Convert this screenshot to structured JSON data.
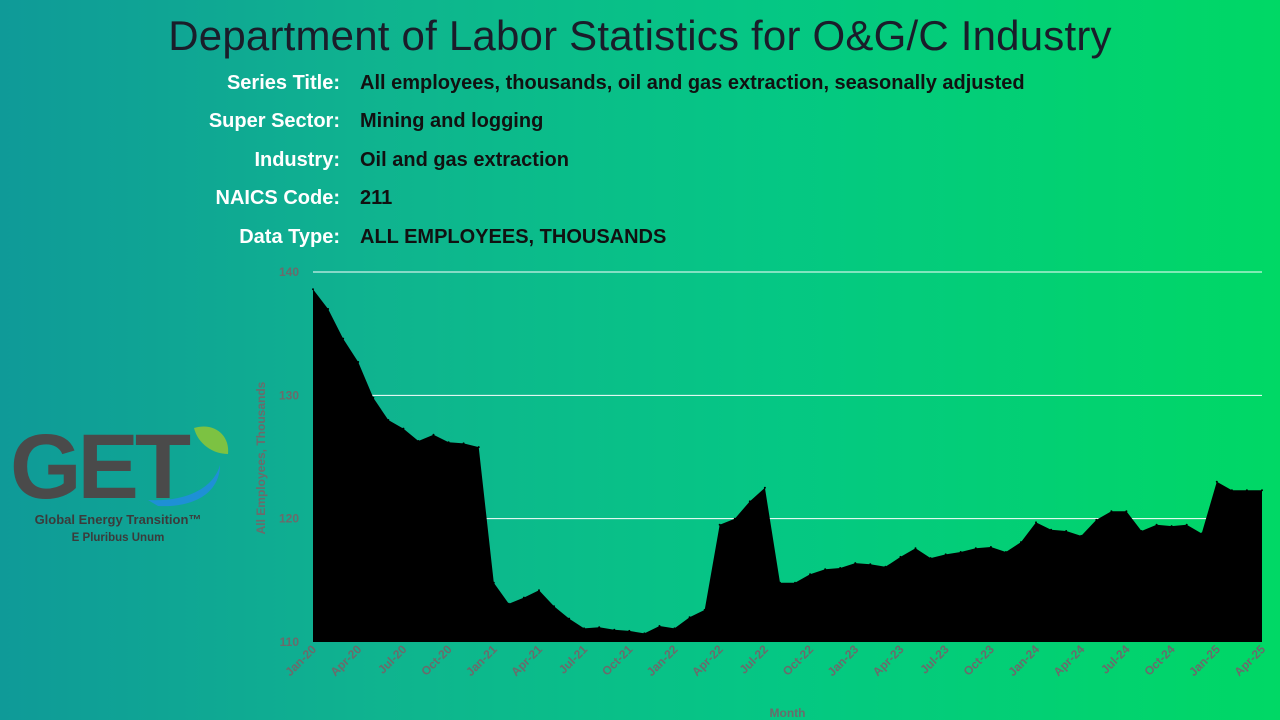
{
  "header": {
    "title": "Department of Labor Statistics for O&G/C Industry"
  },
  "meta": [
    {
      "label": "Series Title:",
      "value": "All employees, thousands, oil and gas extraction, seasonally adjusted"
    },
    {
      "label": "Super Sector:",
      "value": "Mining and logging"
    },
    {
      "label": "Industry:",
      "value": "Oil and gas extraction"
    },
    {
      "label": "NAICS Code:",
      "value": "211"
    },
    {
      "label": "Data Type:",
      "value": "ALL EMPLOYEES, THOUSANDS"
    }
  ],
  "logo": {
    "letters": "GET",
    "name": "Global Energy Transition™",
    "tagline": "E Pluribus Unum"
  },
  "colors": {
    "area_fill": "#000000",
    "gridline": "#ffffff",
    "axis_text": "#6b6b6b",
    "logo_gray": "#4a4a4a",
    "logo_blue": "#1e90d6",
    "logo_leaf": "#7cc242"
  },
  "chart_data": {
    "type": "area",
    "xlabel": "Month",
    "ylabel": "All Employees, Thousands",
    "ylim": [
      110,
      140
    ],
    "yticks": [
      110,
      120,
      130,
      140
    ],
    "grid": true,
    "x": [
      "Jan-20",
      "Feb-20",
      "Mar-20",
      "Apr-20",
      "May-20",
      "Jun-20",
      "Jul-20",
      "Aug-20",
      "Sep-20",
      "Oct-20",
      "Nov-20",
      "Dec-20",
      "Jan-21",
      "Feb-21",
      "Mar-21",
      "Apr-21",
      "May-21",
      "Jun-21",
      "Jul-21",
      "Aug-21",
      "Sep-21",
      "Oct-21",
      "Nov-21",
      "Dec-21",
      "Jan-22",
      "Feb-22",
      "Mar-22",
      "Apr-22",
      "May-22",
      "Jun-22",
      "Jul-22",
      "Aug-22",
      "Sep-22",
      "Oct-22",
      "Nov-22",
      "Dec-22",
      "Jan-23",
      "Feb-23",
      "Mar-23",
      "Apr-23",
      "May-23",
      "Jun-23",
      "Jul-23",
      "Aug-23",
      "Sep-23",
      "Oct-23",
      "Nov-23",
      "Dec-23",
      "Jan-24",
      "Feb-24",
      "Mar-24",
      "Apr-24",
      "May-24",
      "Jun-24",
      "Jul-24",
      "Aug-24",
      "Sep-24",
      "Oct-24",
      "Nov-24",
      "Dec-24",
      "Jan-25",
      "Feb-25",
      "Mar-25",
      "Apr-25"
    ],
    "xtick_labels": [
      "Jan-20",
      "Apr-20",
      "Jul-20",
      "Oct-20",
      "Jan-21",
      "Apr-21",
      "Jul-21",
      "Oct-21",
      "Jan-22",
      "Apr-22",
      "Jul-22",
      "Oct-22",
      "Jan-23",
      "Apr-23",
      "Jul-23",
      "Oct-23",
      "Jan-24",
      "Apr-24",
      "Jul-24",
      "Oct-24",
      "Jan-25",
      "Apr-25"
    ],
    "series": [
      {
        "values": [
          138.6,
          137.0,
          134.6,
          132.7,
          129.8,
          128.0,
          127.3,
          126.3,
          126.8,
          126.2,
          126.1,
          125.8,
          114.8,
          113.1,
          113.6,
          114.2,
          112.9,
          111.9,
          111.1,
          111.2,
          111.0,
          110.9,
          110.7,
          111.3,
          111.1,
          112.0,
          112.6,
          119.5,
          120.0,
          121.4,
          122.5,
          114.8,
          114.8,
          115.5,
          115.9,
          116.0,
          116.4,
          116.3,
          116.1,
          116.9,
          117.6,
          116.8,
          117.1,
          117.3,
          117.6,
          117.7,
          117.3,
          118.1,
          119.7,
          119.1,
          119.0,
          118.6,
          119.9,
          120.6,
          120.6,
          119.0,
          119.5,
          119.4,
          119.5,
          118.8,
          123.0,
          122.3,
          122.3,
          122.3
        ]
      }
    ]
  }
}
